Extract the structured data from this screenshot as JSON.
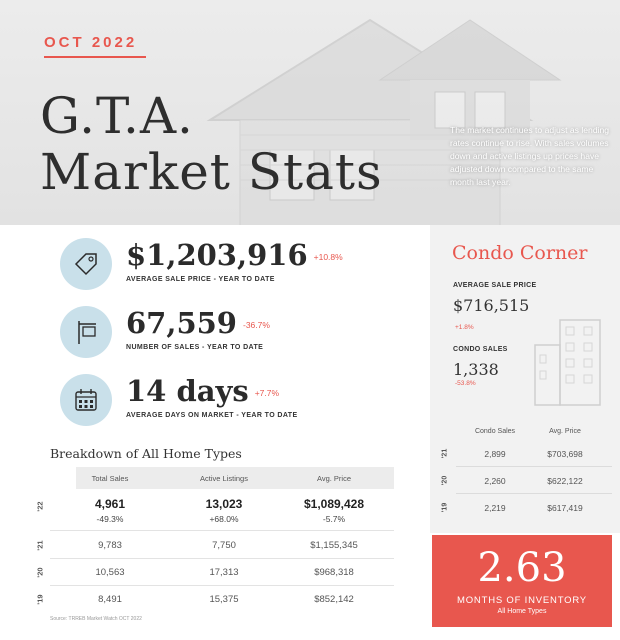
{
  "header": {
    "month": "OCT 2022",
    "title_line1": "G.T.A.",
    "title_line2": "Market Stats",
    "intro": "The market continues to adjust as lending rates continue to rise. With sales volumes down and active listings up prices have adjusted down compared to the same month last year."
  },
  "stats": [
    {
      "icon": "price-tag-icon",
      "value": "$1,203,916",
      "change": "+10.8%",
      "label": "AVERAGE SALE PRICE - YEAR TO DATE"
    },
    {
      "icon": "for-sale-sign-icon",
      "value": "67,559",
      "change": "-36.7%",
      "label": "NUMBER OF SALES - YEAR TO DATE"
    },
    {
      "icon": "calendar-icon",
      "value": "14 days",
      "change": "+7.7%",
      "label": "AVERAGE DAYS ON MARKET - YEAR TO DATE"
    }
  ],
  "breakdown": {
    "title": "Breakdown of All Home Types",
    "columns": [
      "Total Sales",
      "Active Listings",
      "Avg. Price"
    ],
    "rows": [
      {
        "year": "'22",
        "total_sales": "4,961",
        "total_sales_change": "-49.3%",
        "active_listings": "13,023",
        "active_listings_change": "+68.0%",
        "avg_price": "$1,089,428",
        "avg_price_change": "-5.7%"
      },
      {
        "year": "'21",
        "total_sales": "9,783",
        "active_listings": "7,750",
        "avg_price": "$1,155,345"
      },
      {
        "year": "'20",
        "total_sales": "10,563",
        "active_listings": "17,313",
        "avg_price": "$968,318"
      },
      {
        "year": "'19",
        "total_sales": "8,491",
        "active_listings": "15,375",
        "avg_price": "$852,142"
      }
    ],
    "source": "Source: TRREB Market Watch OCT 2022"
  },
  "condo": {
    "title": "Condo Corner",
    "avg_price_label": "AVERAGE SALE PRICE",
    "avg_price": "$716,515",
    "avg_price_change": "+1.8%",
    "sales_label": "CONDO SALES",
    "sales": "1,338",
    "sales_change": "-53.8%",
    "columns": [
      "Condo Sales",
      "Avg. Price"
    ],
    "rows": [
      {
        "year": "'21",
        "sales": "2,899",
        "price": "$703,698"
      },
      {
        "year": "'20",
        "sales": "2,260",
        "price": "$622,122"
      },
      {
        "year": "'19",
        "sales": "2,219",
        "price": "$617,419"
      }
    ]
  },
  "inventory": {
    "value": "2.63",
    "label": "MONTHS OF INVENTORY",
    "sub": "All Home Types"
  },
  "colors": {
    "accent": "#e8574e",
    "icon_bg": "#c9e0ea"
  }
}
